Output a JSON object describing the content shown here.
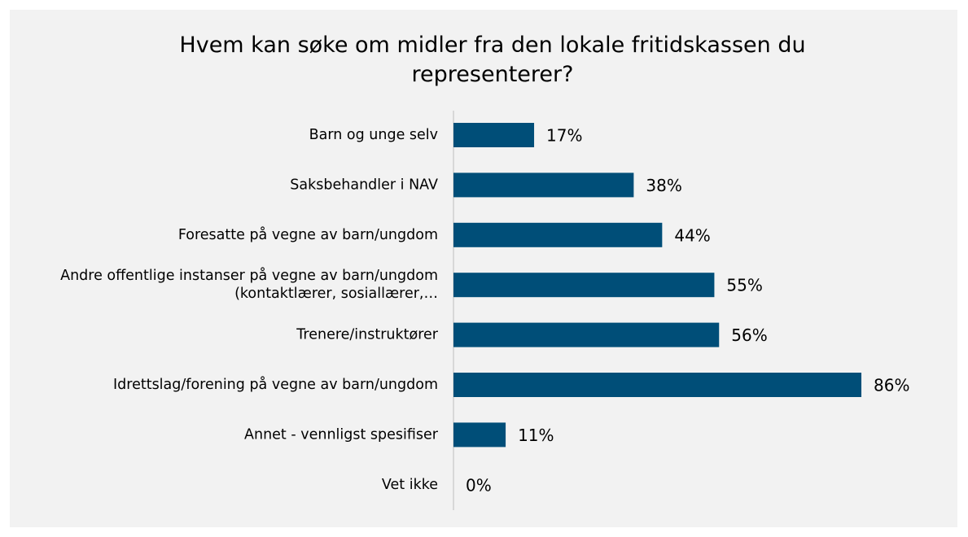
{
  "chart_data": {
    "type": "bar",
    "orientation": "horizontal",
    "title": "Hvem kan søke om midler fra den lokale fritidskassen du representerer?",
    "categories": [
      "Barn og unge selv",
      "Saksbehandler i NAV",
      "Foresatte på vegne av barn/ungdom",
      "Andre offentlige instanser på vegne av barn/ungdom (kontaktlærer, sosiallærer,…",
      "Trenere/instruktører",
      "Idrettslag/forening på vegne av barn/ungdom",
      "Annet - vennligst spesifiser",
      "Vet ikke"
    ],
    "values": [
      17,
      38,
      44,
      55,
      56,
      86,
      11,
      0
    ],
    "value_labels": [
      "17%",
      "38%",
      "44%",
      "55%",
      "56%",
      "86%",
      "11%",
      "0%"
    ],
    "color": "#004e78",
    "xlim": [
      0,
      100
    ]
  }
}
